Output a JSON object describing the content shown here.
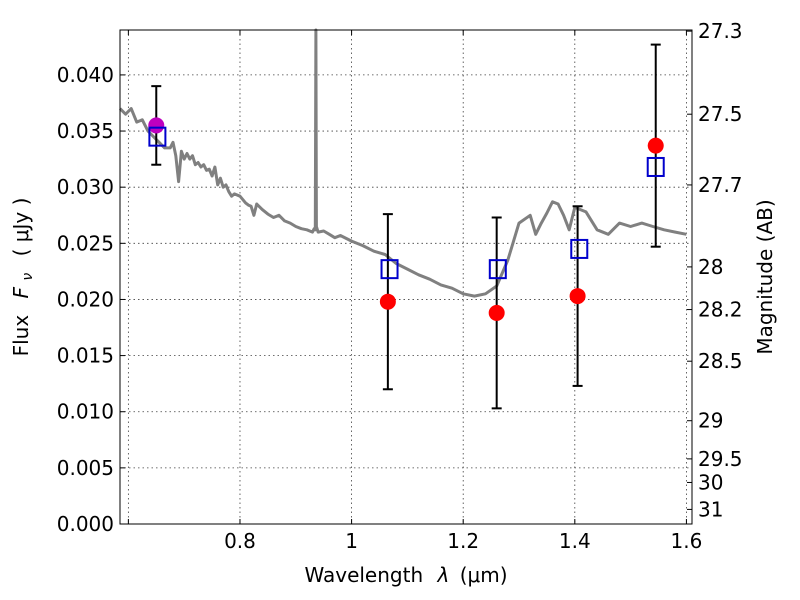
{
  "chart_data": {
    "type": "scatter",
    "xlabel_text": "Wavelength",
    "xlabel_symbol": "λ",
    "xlabel_unit": "(μm)",
    "ylabel_text": "Flux",
    "ylabel_symbol": "F",
    "ylabel_subscript": "ν",
    "ylabel_unit": "( μJy )",
    "y2label": "Magnitude (AB)",
    "xlim": [
      0.585,
      1.61
    ],
    "ylim": [
      0.0,
      0.044
    ],
    "xticks": [
      0.6,
      0.8,
      1.0,
      1.2,
      1.4,
      1.6
    ],
    "xtick_labels": [
      "",
      "0.8",
      "1",
      "1.2",
      "1.4",
      "1.6"
    ],
    "yticks": [
      0.0,
      0.005,
      0.01,
      0.015,
      0.02,
      0.025,
      0.03,
      0.035,
      0.04
    ],
    "ytick_labels": [
      "0.000",
      "0.005",
      "0.010",
      "0.015",
      "0.020",
      "0.025",
      "0.030",
      "0.035",
      "0.040"
    ],
    "y2ticks": [
      {
        "label": "27.3",
        "flux": 0.0439
      },
      {
        "label": "27.5",
        "flux": 0.0365
      },
      {
        "label": "27.7",
        "flux": 0.0302
      },
      {
        "label": "28",
        "flux": 0.0229
      },
      {
        "label": "28.2",
        "flux": 0.0191
      },
      {
        "label": "28.5",
        "flux": 0.0145
      },
      {
        "label": "29",
        "flux": 0.0092
      },
      {
        "label": "29.5",
        "flux": 0.0058
      },
      {
        "label": "30",
        "flux": 0.0037
      },
      {
        "label": "31",
        "flux": 0.0013
      }
    ],
    "grid": true,
    "series": [
      {
        "kind": "line",
        "color": "#808080",
        "x": [
          0.585,
          0.595,
          0.605,
          0.615,
          0.625,
          0.635,
          0.645,
          0.655,
          0.665,
          0.675,
          0.68,
          0.685,
          0.69,
          0.695,
          0.7,
          0.705,
          0.71,
          0.715,
          0.72,
          0.725,
          0.73,
          0.735,
          0.74,
          0.745,
          0.75,
          0.755,
          0.76,
          0.765,
          0.77,
          0.775,
          0.78,
          0.785,
          0.79,
          0.8,
          0.81,
          0.815,
          0.82,
          0.825,
          0.83,
          0.84,
          0.85,
          0.86,
          0.87,
          0.88,
          0.89,
          0.9,
          0.91,
          0.92,
          0.93,
          0.933,
          0.935,
          0.936,
          0.937,
          0.94,
          0.95,
          0.96,
          0.97,
          0.98,
          1.0,
          1.02,
          1.04,
          1.06,
          1.08,
          1.1,
          1.12,
          1.14,
          1.16,
          1.18,
          1.2,
          1.22,
          1.24,
          1.26,
          1.28,
          1.3,
          1.32,
          1.33,
          1.34,
          1.35,
          1.36,
          1.37,
          1.38,
          1.39,
          1.4,
          1.42,
          1.44,
          1.46,
          1.48,
          1.5,
          1.52,
          1.54,
          1.56,
          1.58,
          1.6
        ],
        "y": [
          0.037,
          0.0365,
          0.037,
          0.0358,
          0.036,
          0.035,
          0.0345,
          0.034,
          0.0335,
          0.0335,
          0.034,
          0.0328,
          0.0305,
          0.0332,
          0.0325,
          0.033,
          0.0325,
          0.0328,
          0.032,
          0.0322,
          0.0318,
          0.032,
          0.0315,
          0.0316,
          0.031,
          0.0318,
          0.0302,
          0.0308,
          0.03,
          0.0302,
          0.0296,
          0.0292,
          0.0294,
          0.0292,
          0.0286,
          0.0284,
          0.0283,
          0.0275,
          0.0285,
          0.028,
          0.0276,
          0.0273,
          0.0275,
          0.027,
          0.0268,
          0.0265,
          0.0263,
          0.0262,
          0.026,
          0.0263,
          0.0262,
          0.044,
          0.0265,
          0.026,
          0.0261,
          0.0258,
          0.0255,
          0.0257,
          0.0252,
          0.0248,
          0.0243,
          0.024,
          0.0232,
          0.0227,
          0.0222,
          0.0218,
          0.0213,
          0.021,
          0.0205,
          0.0203,
          0.0205,
          0.0212,
          0.0235,
          0.0268,
          0.0275,
          0.0258,
          0.0268,
          0.0277,
          0.0287,
          0.0285,
          0.0275,
          0.0262,
          0.0282,
          0.0278,
          0.0262,
          0.0258,
          0.0268,
          0.0265,
          0.0268,
          0.0265,
          0.0262,
          0.026,
          0.0258
        ]
      },
      {
        "kind": "errorbar",
        "color": "#000000",
        "x": [
          0.65,
          1.065,
          1.26,
          1.405,
          1.545
        ],
        "y": [
          0.0355,
          0.0198,
          0.0188,
          0.0203,
          0.0337
        ],
        "yerr": [
          0.0035,
          0.0078,
          0.0085,
          0.008,
          0.009
        ]
      },
      {
        "kind": "marker",
        "marker": "circle",
        "color": "#ff0000",
        "x": [
          1.065,
          1.26,
          1.405,
          1.545
        ],
        "y": [
          0.0198,
          0.0188,
          0.0203,
          0.0337
        ]
      },
      {
        "kind": "marker",
        "marker": "circle",
        "color": "#bf00bf",
        "x": [
          0.65
        ],
        "y": [
          0.0355
        ]
      },
      {
        "kind": "marker",
        "marker": "square-open",
        "color": "#0000cc",
        "x": [
          0.652,
          1.068,
          1.262,
          1.408,
          1.545
        ],
        "y": [
          0.0345,
          0.0227,
          0.0227,
          0.0245,
          0.0318
        ]
      }
    ]
  }
}
